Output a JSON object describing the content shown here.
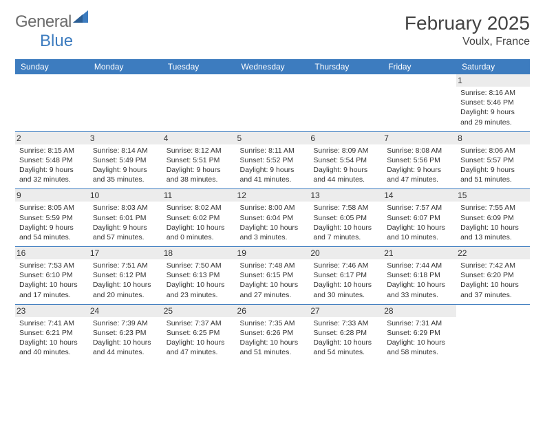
{
  "brand": {
    "name1": "General",
    "name2": "Blue",
    "color1": "#6b6b6b",
    "color2": "#3d7cbf"
  },
  "header": {
    "month_title": "February 2025",
    "location": "Voulx, France"
  },
  "colors": {
    "header_bg": "#3d7cbf",
    "header_fg": "#ffffff",
    "daynum_bg": "#ececec",
    "rule": "#3d7cbf",
    "page_bg": "#ffffff",
    "text": "#333333"
  },
  "weekdays": [
    "Sunday",
    "Monday",
    "Tuesday",
    "Wednesday",
    "Thursday",
    "Friday",
    "Saturday"
  ],
  "days": [
    {
      "n": "",
      "sr": "",
      "ss": "",
      "dl1": "",
      "dl2": ""
    },
    {
      "n": "",
      "sr": "",
      "ss": "",
      "dl1": "",
      "dl2": ""
    },
    {
      "n": "",
      "sr": "",
      "ss": "",
      "dl1": "",
      "dl2": ""
    },
    {
      "n": "",
      "sr": "",
      "ss": "",
      "dl1": "",
      "dl2": ""
    },
    {
      "n": "",
      "sr": "",
      "ss": "",
      "dl1": "",
      "dl2": ""
    },
    {
      "n": "",
      "sr": "",
      "ss": "",
      "dl1": "",
      "dl2": ""
    },
    {
      "n": "1",
      "sr": "Sunrise: 8:16 AM",
      "ss": "Sunset: 5:46 PM",
      "dl1": "Daylight: 9 hours",
      "dl2": "and 29 minutes."
    },
    {
      "n": "2",
      "sr": "Sunrise: 8:15 AM",
      "ss": "Sunset: 5:48 PM",
      "dl1": "Daylight: 9 hours",
      "dl2": "and 32 minutes."
    },
    {
      "n": "3",
      "sr": "Sunrise: 8:14 AM",
      "ss": "Sunset: 5:49 PM",
      "dl1": "Daylight: 9 hours",
      "dl2": "and 35 minutes."
    },
    {
      "n": "4",
      "sr": "Sunrise: 8:12 AM",
      "ss": "Sunset: 5:51 PM",
      "dl1": "Daylight: 9 hours",
      "dl2": "and 38 minutes."
    },
    {
      "n": "5",
      "sr": "Sunrise: 8:11 AM",
      "ss": "Sunset: 5:52 PM",
      "dl1": "Daylight: 9 hours",
      "dl2": "and 41 minutes."
    },
    {
      "n": "6",
      "sr": "Sunrise: 8:09 AM",
      "ss": "Sunset: 5:54 PM",
      "dl1": "Daylight: 9 hours",
      "dl2": "and 44 minutes."
    },
    {
      "n": "7",
      "sr": "Sunrise: 8:08 AM",
      "ss": "Sunset: 5:56 PM",
      "dl1": "Daylight: 9 hours",
      "dl2": "and 47 minutes."
    },
    {
      "n": "8",
      "sr": "Sunrise: 8:06 AM",
      "ss": "Sunset: 5:57 PM",
      "dl1": "Daylight: 9 hours",
      "dl2": "and 51 minutes."
    },
    {
      "n": "9",
      "sr": "Sunrise: 8:05 AM",
      "ss": "Sunset: 5:59 PM",
      "dl1": "Daylight: 9 hours",
      "dl2": "and 54 minutes."
    },
    {
      "n": "10",
      "sr": "Sunrise: 8:03 AM",
      "ss": "Sunset: 6:01 PM",
      "dl1": "Daylight: 9 hours",
      "dl2": "and 57 minutes."
    },
    {
      "n": "11",
      "sr": "Sunrise: 8:02 AM",
      "ss": "Sunset: 6:02 PM",
      "dl1": "Daylight: 10 hours",
      "dl2": "and 0 minutes."
    },
    {
      "n": "12",
      "sr": "Sunrise: 8:00 AM",
      "ss": "Sunset: 6:04 PM",
      "dl1": "Daylight: 10 hours",
      "dl2": "and 3 minutes."
    },
    {
      "n": "13",
      "sr": "Sunrise: 7:58 AM",
      "ss": "Sunset: 6:05 PM",
      "dl1": "Daylight: 10 hours",
      "dl2": "and 7 minutes."
    },
    {
      "n": "14",
      "sr": "Sunrise: 7:57 AM",
      "ss": "Sunset: 6:07 PM",
      "dl1": "Daylight: 10 hours",
      "dl2": "and 10 minutes."
    },
    {
      "n": "15",
      "sr": "Sunrise: 7:55 AM",
      "ss": "Sunset: 6:09 PM",
      "dl1": "Daylight: 10 hours",
      "dl2": "and 13 minutes."
    },
    {
      "n": "16",
      "sr": "Sunrise: 7:53 AM",
      "ss": "Sunset: 6:10 PM",
      "dl1": "Daylight: 10 hours",
      "dl2": "and 17 minutes."
    },
    {
      "n": "17",
      "sr": "Sunrise: 7:51 AM",
      "ss": "Sunset: 6:12 PM",
      "dl1": "Daylight: 10 hours",
      "dl2": "and 20 minutes."
    },
    {
      "n": "18",
      "sr": "Sunrise: 7:50 AM",
      "ss": "Sunset: 6:13 PM",
      "dl1": "Daylight: 10 hours",
      "dl2": "and 23 minutes."
    },
    {
      "n": "19",
      "sr": "Sunrise: 7:48 AM",
      "ss": "Sunset: 6:15 PM",
      "dl1": "Daylight: 10 hours",
      "dl2": "and 27 minutes."
    },
    {
      "n": "20",
      "sr": "Sunrise: 7:46 AM",
      "ss": "Sunset: 6:17 PM",
      "dl1": "Daylight: 10 hours",
      "dl2": "and 30 minutes."
    },
    {
      "n": "21",
      "sr": "Sunrise: 7:44 AM",
      "ss": "Sunset: 6:18 PM",
      "dl1": "Daylight: 10 hours",
      "dl2": "and 33 minutes."
    },
    {
      "n": "22",
      "sr": "Sunrise: 7:42 AM",
      "ss": "Sunset: 6:20 PM",
      "dl1": "Daylight: 10 hours",
      "dl2": "and 37 minutes."
    },
    {
      "n": "23",
      "sr": "Sunrise: 7:41 AM",
      "ss": "Sunset: 6:21 PM",
      "dl1": "Daylight: 10 hours",
      "dl2": "and 40 minutes."
    },
    {
      "n": "24",
      "sr": "Sunrise: 7:39 AM",
      "ss": "Sunset: 6:23 PM",
      "dl1": "Daylight: 10 hours",
      "dl2": "and 44 minutes."
    },
    {
      "n": "25",
      "sr": "Sunrise: 7:37 AM",
      "ss": "Sunset: 6:25 PM",
      "dl1": "Daylight: 10 hours",
      "dl2": "and 47 minutes."
    },
    {
      "n": "26",
      "sr": "Sunrise: 7:35 AM",
      "ss": "Sunset: 6:26 PM",
      "dl1": "Daylight: 10 hours",
      "dl2": "and 51 minutes."
    },
    {
      "n": "27",
      "sr": "Sunrise: 7:33 AM",
      "ss": "Sunset: 6:28 PM",
      "dl1": "Daylight: 10 hours",
      "dl2": "and 54 minutes."
    },
    {
      "n": "28",
      "sr": "Sunrise: 7:31 AM",
      "ss": "Sunset: 6:29 PM",
      "dl1": "Daylight: 10 hours",
      "dl2": "and 58 minutes."
    },
    {
      "n": "",
      "sr": "",
      "ss": "",
      "dl1": "",
      "dl2": ""
    }
  ]
}
